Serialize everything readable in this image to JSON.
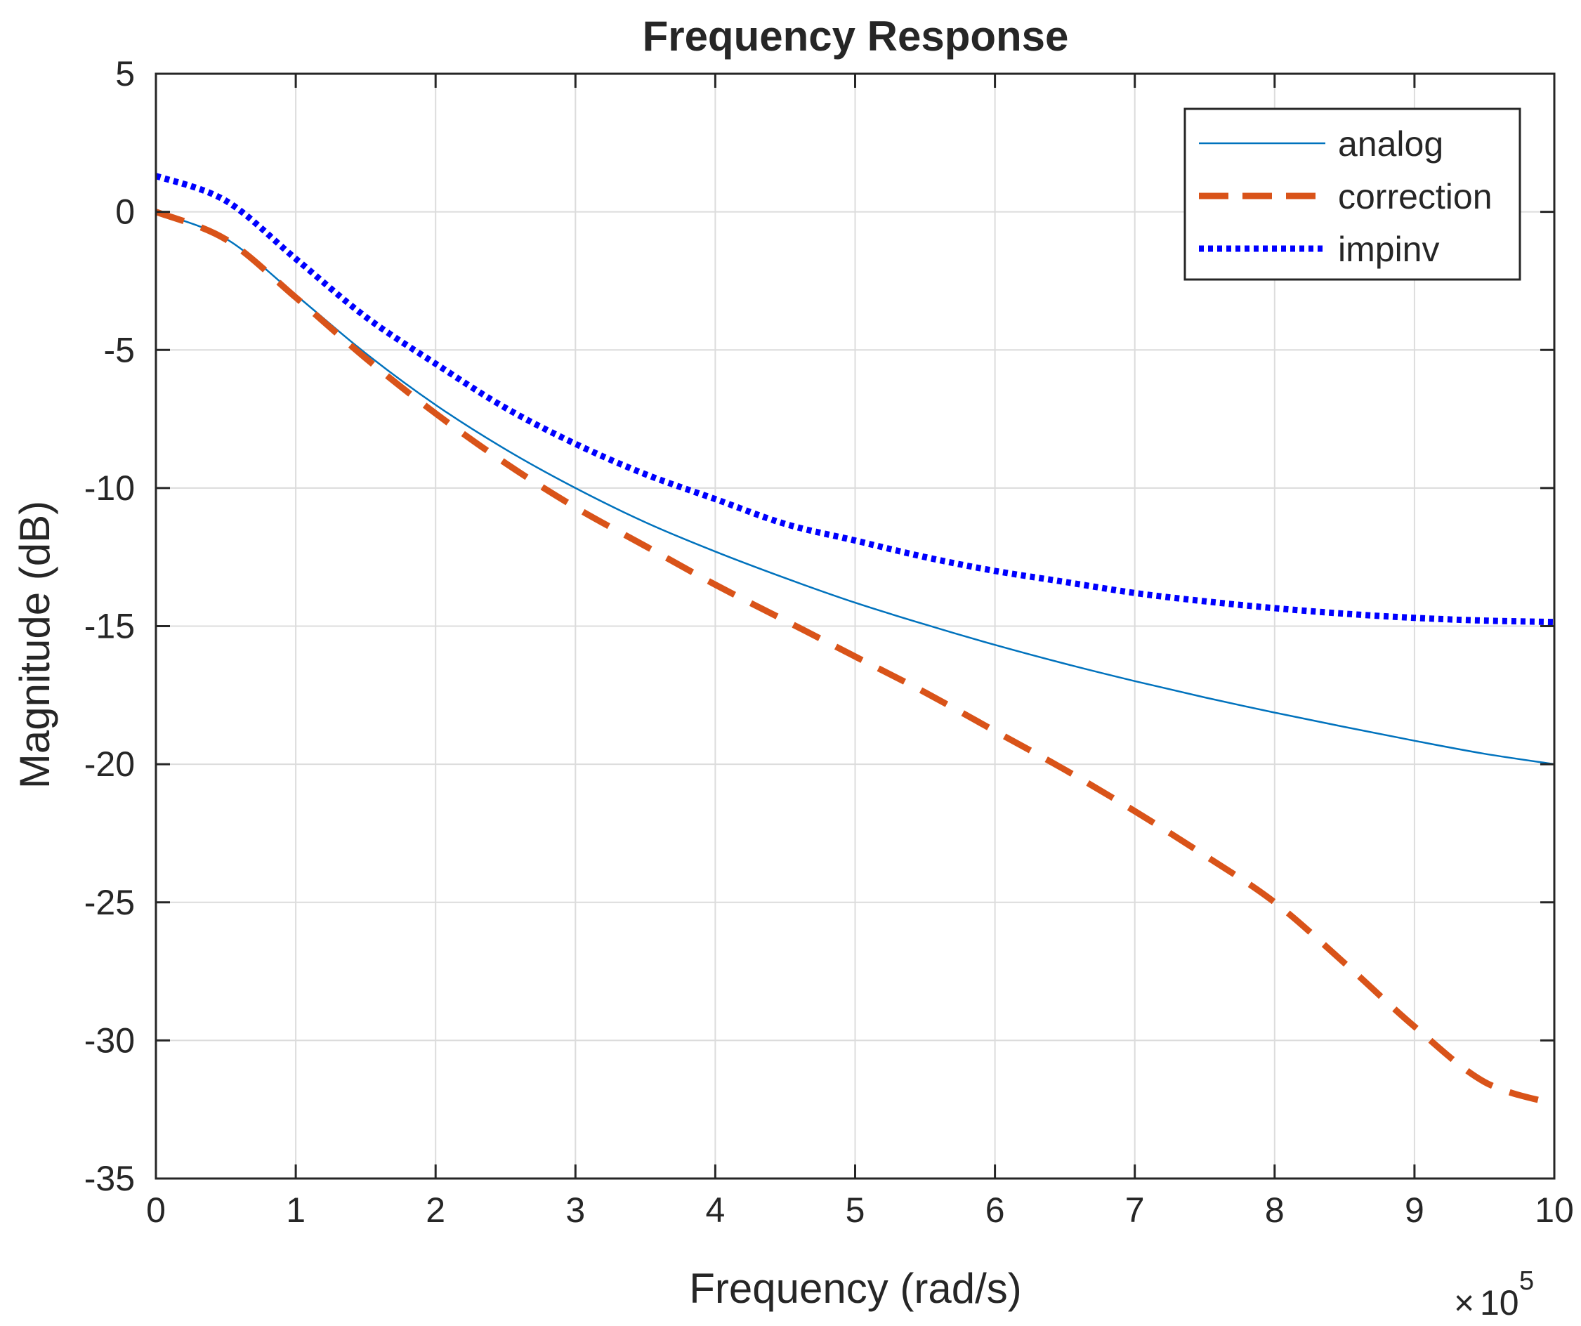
{
  "chart_data": {
    "type": "line",
    "title": "Frequency Response",
    "xlabel": "Frequency (rad/s)",
    "ylabel": "Magnitude (dB)",
    "x_exponent": {
      "base": "10",
      "power": "5",
      "times_symbol": "×"
    },
    "xlim": [
      0,
      10
    ],
    "ylim": [
      -35,
      5
    ],
    "xticks": [
      0,
      1,
      2,
      3,
      4,
      5,
      6,
      7,
      8,
      9,
      10
    ],
    "xtick_labels": [
      "0",
      "1",
      "2",
      "3",
      "4",
      "5",
      "6",
      "7",
      "8",
      "9",
      "10"
    ],
    "yticks": [
      5,
      0,
      -5,
      -10,
      -15,
      -20,
      -25,
      -30,
      -35
    ],
    "ytick_labels": [
      "5",
      "0",
      "-5",
      "-10",
      "-15",
      "-20",
      "-25",
      "-30",
      "-35"
    ],
    "grid": true,
    "legend_position": "top-right",
    "x": [
      0,
      0.5,
      1,
      1.5,
      2,
      2.5,
      3,
      3.5,
      4,
      4.5,
      5,
      5.5,
      6,
      6.5,
      7,
      7.5,
      8,
      8.5,
      9,
      9.5,
      10
    ],
    "series": [
      {
        "name": "analog",
        "color": "#0072BD",
        "style": "solid",
        "values": [
          0,
          -0.97,
          -3.01,
          -5.12,
          -6.99,
          -8.6,
          -10.0,
          -11.24,
          -12.3,
          -13.26,
          -14.15,
          -14.94,
          -15.68,
          -16.36,
          -16.99,
          -17.58,
          -18.13,
          -18.65,
          -19.15,
          -19.62,
          -20.0
        ]
      },
      {
        "name": "correction",
        "color": "#D95319",
        "style": "dashed",
        "values": [
          0,
          -1.0,
          -3.1,
          -5.3,
          -7.3,
          -9.1,
          -10.7,
          -12.1,
          -13.5,
          -14.8,
          -16.1,
          -17.4,
          -18.8,
          -20.2,
          -21.7,
          -23.3,
          -25.0,
          -27.2,
          -29.5,
          -31.5,
          -32.3
        ]
      },
      {
        "name": "impinv",
        "color": "#0000FF",
        "style": "dotted",
        "values": [
          1.3,
          0.4,
          -1.7,
          -3.8,
          -5.5,
          -7.1,
          -8.4,
          -9.5,
          -10.4,
          -11.3,
          -11.9,
          -12.5,
          -13.0,
          -13.4,
          -13.8,
          -14.1,
          -14.35,
          -14.55,
          -14.7,
          -14.8,
          -14.85
        ]
      }
    ]
  }
}
